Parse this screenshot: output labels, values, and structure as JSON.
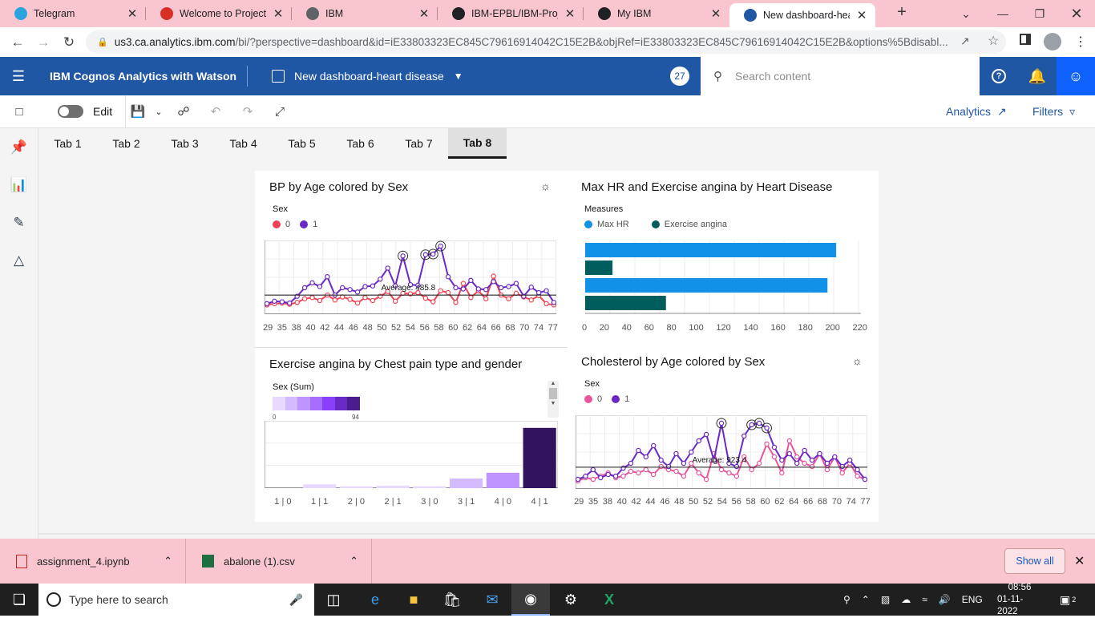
{
  "browser": {
    "tabs": [
      {
        "title": "Telegram",
        "icon": "telegram-icon",
        "color": "#2aa3df"
      },
      {
        "title": "Welcome to Project! D",
        "icon": "gmail-icon",
        "color": "#d93025"
      },
      {
        "title": "IBM",
        "icon": "globe-icon",
        "color": "#5f6368"
      },
      {
        "title": "IBM-EPBL/IBM-Project",
        "icon": "github-icon",
        "color": "#202124"
      },
      {
        "title": "My IBM",
        "icon": "ibm-icon",
        "color": "#202124"
      },
      {
        "title": "New dashboard-heart",
        "icon": "cognos-icon",
        "color": "#1f57a4"
      }
    ],
    "url_host": "us3.ca.analytics.ibm.com",
    "url_path": "/bi/?perspective=dashboard&id=iE33803323EC845C79616914042C15E2B&objRef=iE33803323EC845C79616914042C15E2B&options%5Bdisabl..."
  },
  "app": {
    "brand": "IBM Cognos Analytics with Watson",
    "dashboard_title": "New dashboard-heart disease",
    "notification_count": "27",
    "search_placeholder": "Search content"
  },
  "toolbar": {
    "edit_label": "Edit",
    "analytics_label": "Analytics",
    "filters_label": "Filters"
  },
  "dashboard_tabs": [
    "Tab 1",
    "Tab 2",
    "Tab 3",
    "Tab 4",
    "Tab 5",
    "Tab 6",
    "Tab 7",
    "Tab 8"
  ],
  "active_tab": "Tab 8",
  "colors": {
    "sex0": "#ee4455",
    "sex1": "#6929c4",
    "maxhr": "#1192e8",
    "angina": "#005d5d",
    "chol0": "#e8559c"
  },
  "chart_data": [
    {
      "type": "line",
      "title": "BP by Age colored by Sex",
      "legend_title": "Sex",
      "legend": [
        "0",
        "1"
      ],
      "average_label": "Average: 485.8",
      "x_tick_labels": [
        "29",
        "35",
        "38",
        "40",
        "42",
        "44",
        "46",
        "48",
        "50",
        "52",
        "54",
        "56",
        "58",
        "60",
        "62",
        "64",
        "66",
        "68",
        "70",
        "74",
        "77"
      ],
      "y_range": [
        0,
        1100
      ],
      "series": [
        {
          "name": "1",
          "values": [
            120,
            160,
            150,
            130,
            240,
            380,
            460,
            400,
            560,
            260,
            380,
            350,
            310,
            400,
            410,
            520,
            700,
            410,
            900,
            430,
            420,
            920,
            930,
            1060,
            560,
            380,
            360,
            500,
            360,
            350,
            480,
            380,
            400,
            450,
            240,
            390,
            300,
            330,
            140
          ]
        },
        {
          "name": "0",
          "values": [
            100,
            120,
            130,
            110,
            140,
            200,
            220,
            170,
            260,
            180,
            230,
            190,
            130,
            220,
            170,
            240,
            320,
            160,
            290,
            280,
            300,
            210,
            150,
            330,
            300,
            140,
            450,
            220,
            330,
            200,
            570,
            260,
            200,
            290,
            230,
            180,
            250,
            120,
            100
          ]
        }
      ]
    },
    {
      "type": "bar",
      "orientation": "horizontal",
      "title": "Max HR and Exercise angina by Heart Disease",
      "legend_title": "Measures",
      "legend": [
        "Max HR",
        "Exercise angina"
      ],
      "x_tick_labels": [
        "0",
        "20",
        "40",
        "60",
        "80",
        "100",
        "120",
        "140",
        "160",
        "180",
        "200",
        "220"
      ],
      "x_range": [
        0,
        220
      ],
      "bars": [
        {
          "measure": "Max HR",
          "value": 202
        },
        {
          "measure": "Exercise angina",
          "value": 22
        },
        {
          "measure": "Max HR",
          "value": 195
        },
        {
          "measure": "Exercise angina",
          "value": 65
        }
      ]
    },
    {
      "type": "bar",
      "title": "Exercise angina by Chest pain type and gender",
      "legend_title": "Sex (Sum)",
      "legend_range": [
        "0",
        "94"
      ],
      "categories": [
        "1 | 0",
        "1 | 1",
        "2 | 0",
        "2 | 1",
        "3 | 0",
        "3 | 1",
        "4 | 0",
        "4 | 1"
      ],
      "values": [
        0,
        6,
        3,
        4,
        3,
        15,
        24,
        94
      ],
      "y_range": [
        0,
        100
      ]
    },
    {
      "type": "line",
      "title": "Cholesterol by Age colored by Sex",
      "legend_title": "Sex",
      "legend": [
        "0",
        "1"
      ],
      "average_label": "Average: 923.4",
      "x_tick_labels": [
        "29",
        "35",
        "38",
        "40",
        "42",
        "44",
        "46",
        "48",
        "50",
        "52",
        "54",
        "56",
        "58",
        "60",
        "62",
        "64",
        "66",
        "68",
        "70",
        "74",
        "77"
      ],
      "y_range": [
        0,
        2100
      ],
      "series": [
        {
          "name": "1",
          "values": [
            200,
            300,
            500,
            250,
            350,
            300,
            550,
            700,
            1100,
            900,
            1250,
            800,
            600,
            1000,
            700,
            1050,
            1400,
            1600,
            800,
            1950,
            700,
            600,
            1550,
            1900,
            1950,
            1800,
            1200,
            800,
            1000,
            700,
            1100,
            800,
            1000,
            700,
            900,
            600,
            800,
            500,
            200
          ]
        },
        {
          "name": "0",
          "values": [
            150,
            250,
            200,
            300,
            400,
            250,
            300,
            450,
            400,
            500,
            350,
            600,
            500,
            450,
            300,
            700,
            400,
            200,
            1000,
            500,
            400,
            300,
            900,
            500,
            700,
            1300,
            900,
            400,
            1400,
            900,
            700,
            600,
            1000,
            500,
            900,
            400,
            700,
            300,
            200
          ]
        }
      ]
    }
  ],
  "downloads": [
    {
      "name": "assignment_4.ipynb",
      "icon": "pdf-file-icon"
    },
    {
      "name": "abalone (1).csv",
      "icon": "excel-file-icon"
    }
  ],
  "downloads_show_all": "Show all",
  "taskbar": {
    "search_placeholder": "Type here to search",
    "language": "ENG",
    "time": "08:56",
    "date": "01-11-2022",
    "notif": "2"
  }
}
